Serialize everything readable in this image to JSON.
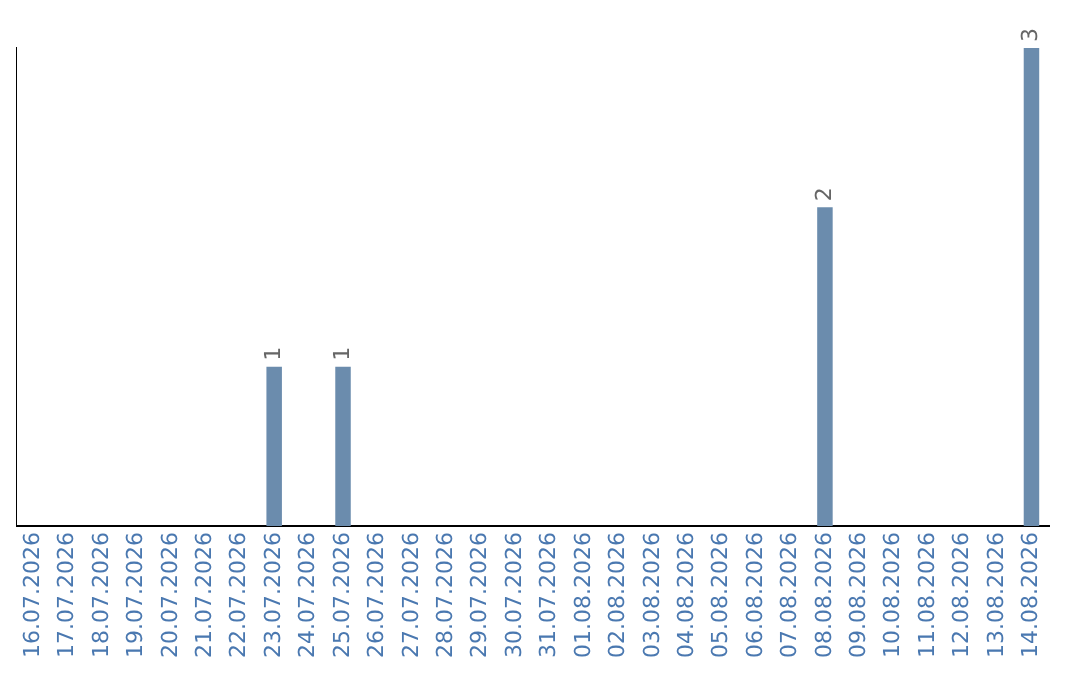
{
  "chart_data": {
    "type": "bar",
    "categories": [
      "16.07.2026",
      "17.07.2026",
      "18.07.2026",
      "19.07.2026",
      "20.07.2026",
      "21.07.2026",
      "22.07.2026",
      "23.07.2026",
      "24.07.2026",
      "25.07.2026",
      "26.07.2026",
      "27.07.2026",
      "28.07.2026",
      "29.07.2026",
      "30.07.2026",
      "31.07.2026",
      "01.08.2026",
      "02.08.2026",
      "03.08.2026",
      "04.08.2026",
      "05.08.2026",
      "06.08.2026",
      "07.08.2026",
      "08.08.2026",
      "09.08.2026",
      "10.08.2026",
      "11.08.2026",
      "12.08.2026",
      "13.08.2026",
      "14.08.2026"
    ],
    "values": [
      0,
      0,
      0,
      0,
      0,
      0,
      0,
      1,
      0,
      1,
      0,
      0,
      0,
      0,
      0,
      0,
      0,
      0,
      0,
      0,
      0,
      0,
      0,
      2,
      0,
      0,
      0,
      0,
      0,
      3
    ],
    "value_labels": [
      null,
      null,
      null,
      null,
      null,
      null,
      null,
      "1",
      null,
      "1",
      null,
      null,
      null,
      null,
      null,
      null,
      null,
      null,
      null,
      null,
      null,
      null,
      null,
      "2",
      null,
      null,
      null,
      null,
      null,
      "3"
    ],
    "color": "#6b8cad",
    "grid": false,
    "legend": false,
    "tick_labels": "x"
  }
}
